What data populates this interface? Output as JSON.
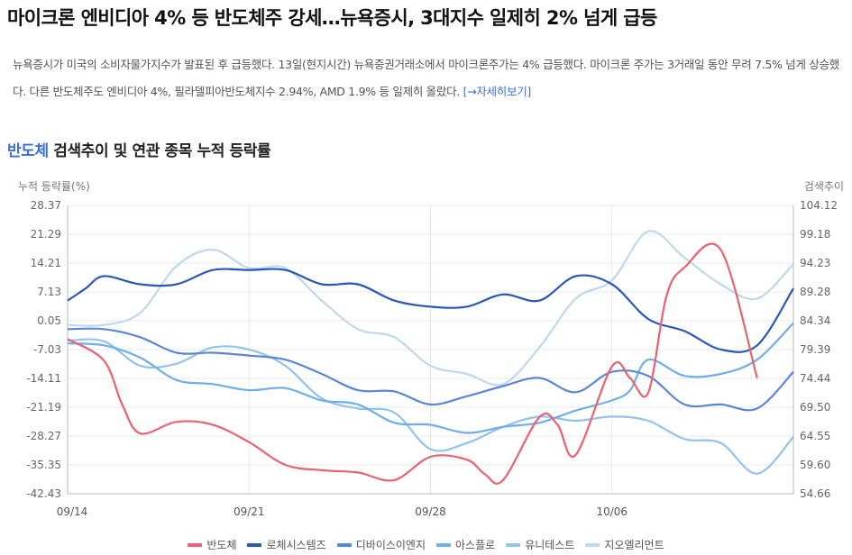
{
  "article": {
    "headline": "마이크론 엔비디아 4% 등 반도체주 강세…뉴욕증시, 3대지수 일제히 2% 넘게 급등",
    "summary": "뉴욕증시가 미국의 소비자물가지수가 발표된 후 급등했다. 13일(현지시간) 뉴욕증권거래소에서 마이크론주가는 4% 급등했다. 마이크론 주가는 3거래일 동안 무려 7.5% 넘게 상승했다. 다른 반도체주도 엔비디아 4%, 필라델피아반도체지수 2.94%, AMD 1.9% 등 일제히 올랐다.",
    "more_link": "[→자세히보기]"
  },
  "section": {
    "keyword": "반도체",
    "title_rest": " 검색추이 및 연관 종목 누적 등락률"
  },
  "chart_data": {
    "type": "line",
    "left_axis_label": "누적 등락률(%)",
    "right_axis_label": "검색추이",
    "left_ticks": [
      "28.37",
      "21.29",
      "14.21",
      "7.13",
      "0.05",
      "-7.03",
      "-14.11",
      "-21.19",
      "-28.27",
      "-35.35",
      "-42.43"
    ],
    "right_ticks": [
      "104.12",
      "99.18",
      "94.23",
      "89.28",
      "84.34",
      "79.39",
      "74.44",
      "69.50",
      "64.55",
      "59.60",
      "54.66"
    ],
    "ylim_left": [
      -42.43,
      28.37
    ],
    "ylim_right": [
      54.66,
      104.12
    ],
    "x_tick_labels": [
      "09/14",
      "09/21",
      "09/28",
      "10/06"
    ],
    "x_tick_positions": [
      0,
      5,
      10,
      15
    ],
    "x_range": [
      0,
      20
    ],
    "grid": true,
    "legend_position": "bottom",
    "series": [
      {
        "name": "반도체",
        "color": "#e8626f",
        "axis": "right",
        "x": [
          0,
          1,
          1.5,
          2,
          3,
          4,
          5,
          6,
          7,
          8,
          9,
          10,
          11,
          11.5,
          12,
          13,
          13.5,
          14,
          15,
          15.5,
          16,
          16.5,
          17,
          18,
          19
        ],
        "y": [
          81.2,
          77.5,
          70,
          65,
          67,
          66.5,
          63.5,
          59.6,
          58.7,
          58.3,
          57.0,
          61.0,
          60.5,
          58.0,
          57.0,
          67.8,
          66.5,
          61.3,
          76.5,
          74.5,
          72.0,
          88.5,
          93.5,
          96.5,
          74.5
        ]
      },
      {
        "name": "로체시스템즈",
        "color": "#2a57b5",
        "axis": "left",
        "x": [
          0,
          0.5,
          1,
          2,
          3,
          4,
          5,
          6,
          7,
          8,
          9,
          10,
          11,
          12,
          13,
          14,
          15,
          16,
          17,
          18,
          19,
          20
        ],
        "y": [
          5.0,
          8.0,
          11.0,
          9.0,
          9.0,
          12.5,
          12.5,
          12.5,
          9.0,
          9.0,
          5.0,
          3.5,
          3.5,
          6.5,
          5.0,
          11.0,
          9.0,
          0.5,
          -2.5,
          -7.0,
          -6.0,
          8.0
        ]
      },
      {
        "name": "디바이스이엔지",
        "color": "#5b86d8",
        "axis": "left",
        "x": [
          0,
          1,
          2,
          3,
          4,
          5,
          6,
          7,
          8,
          9,
          10,
          11,
          12,
          13,
          14,
          15,
          16,
          17,
          18,
          19,
          20
        ],
        "y": [
          -2.0,
          -2.0,
          -4.0,
          -7.8,
          -7.8,
          -8.5,
          -9.5,
          -13.0,
          -17.0,
          -17.3,
          -20.5,
          -18.5,
          -16.0,
          -14.0,
          -17.5,
          -12.5,
          -13.5,
          -20.5,
          -20.5,
          -21.5,
          -12.5
        ]
      },
      {
        "name": "아스플로",
        "color": "#6faee8",
        "axis": "left",
        "x": [
          0,
          1,
          2,
          3,
          4,
          5,
          6,
          7,
          8,
          9,
          10,
          11,
          12,
          13,
          14,
          15,
          15.5,
          16,
          17,
          18,
          19,
          20
        ],
        "y": [
          -5.5,
          -6.0,
          -9.0,
          -14.5,
          -15.5,
          -17.0,
          -16.5,
          -19.5,
          -20.5,
          -25.0,
          -25.5,
          -27.5,
          -26.0,
          -25.0,
          -22.0,
          -19.5,
          -17.0,
          -9.5,
          -13.5,
          -13.0,
          -9.5,
          -0.5
        ]
      },
      {
        "name": "유니테스트",
        "color": "#93c3ec",
        "axis": "left",
        "x": [
          0,
          1,
          2,
          3,
          4,
          5,
          6,
          7,
          8,
          9,
          10,
          11,
          12,
          13,
          14,
          15,
          16,
          17,
          18,
          19,
          20
        ],
        "y": [
          -4.8,
          -5.0,
          -11.0,
          -10.5,
          -6.5,
          -7.0,
          -11.0,
          -19.0,
          -21.5,
          -22.5,
          -31.5,
          -30.0,
          -26.0,
          -23.5,
          -24.5,
          -23.5,
          -24.5,
          -29.0,
          -30.0,
          -37.5,
          -28.5
        ]
      },
      {
        "name": "지오엘리먼트",
        "color": "#bcd9f2",
        "axis": "left",
        "x": [
          0,
          1,
          2,
          3,
          4,
          5,
          6,
          7,
          8,
          9,
          10,
          11,
          12,
          13,
          14,
          15,
          16,
          17,
          18,
          19,
          20
        ],
        "y": [
          -1.0,
          -1.0,
          2.0,
          13.5,
          17.5,
          13.0,
          13.0,
          5.0,
          -2.0,
          -4.0,
          -11.0,
          -13.0,
          -15.5,
          -6.5,
          5.5,
          10.0,
          22.0,
          15.5,
          9.0,
          5.5,
          14.0
        ]
      }
    ]
  }
}
